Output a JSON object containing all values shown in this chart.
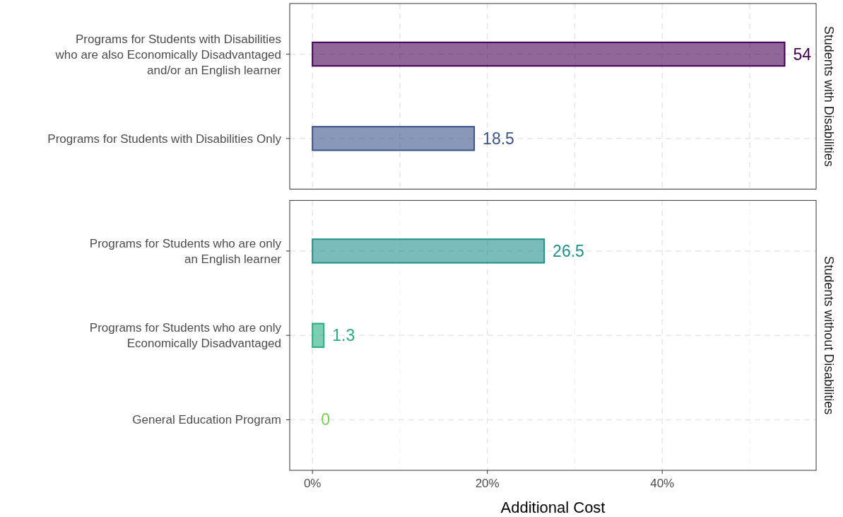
{
  "chart_data": [
    {
      "type": "bar",
      "orientation": "horizontal",
      "title": "Students with Disabilities",
      "categories": [
        "Programs for Students with Disabilities\nwho are also Economically Disadvantaged\nand/or an English learner",
        "Programs for Students with Disabilities Only"
      ],
      "values": [
        54,
        18.5
      ],
      "colors": [
        "#440154",
        "#3b528b"
      ],
      "xlim": [
        -2.6,
        57.6
      ],
      "xticks": [
        {
          "value": 0,
          "label": null
        },
        {
          "value": 10,
          "label": null
        },
        {
          "value": 20,
          "label": null
        },
        {
          "value": 30,
          "label": null
        },
        {
          "value": 40,
          "label": null
        },
        {
          "value": 50,
          "label": null
        }
      ],
      "grid": true,
      "data_labels": true,
      "tick_labels": "y"
    },
    {
      "type": "bar",
      "orientation": "horizontal",
      "title": "Students without Disabilities",
      "xlabel": "Additional Cost",
      "categories": [
        "Programs for Students who are only\nan English learner",
        "Programs for Students who are only\nEconomically Disadvantaged",
        "General Education Program"
      ],
      "values": [
        26.5,
        1.3,
        0
      ],
      "colors": [
        "#21908c",
        "#27ad81",
        "#7ad151"
      ],
      "xlim": [
        -2.6,
        57.6
      ],
      "xticks": [
        {
          "value": 0,
          "label": "0%"
        },
        {
          "value": 10,
          "label": null
        },
        {
          "value": 20,
          "label": "20%"
        },
        {
          "value": 30,
          "label": null
        },
        {
          "value": 40,
          "label": "40%"
        },
        {
          "value": 50,
          "label": null
        }
      ],
      "grid": true,
      "data_labels": true
    }
  ]
}
